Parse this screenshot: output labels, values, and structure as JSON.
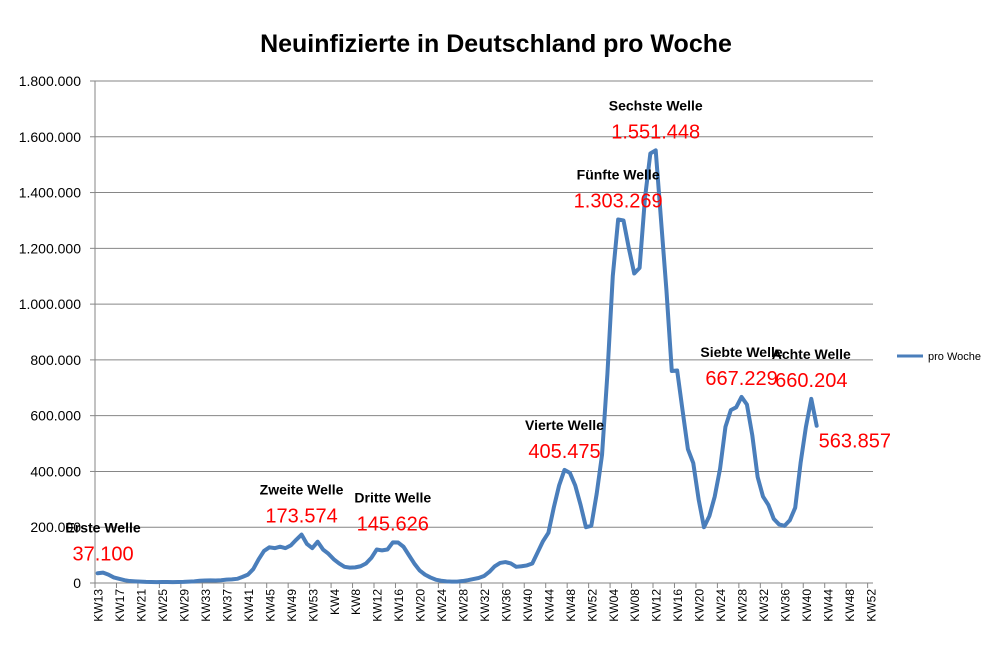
{
  "chart_data": {
    "type": "line",
    "title": "Neuinfizierte in Deutschland pro Woche",
    "categories": [
      "KW13",
      null,
      null,
      null,
      "KW17",
      null,
      null,
      null,
      "KW21",
      null,
      null,
      null,
      "KW25",
      null,
      null,
      null,
      "KW29",
      null,
      null,
      null,
      "KW33",
      null,
      null,
      null,
      "KW37",
      null,
      null,
      null,
      "KW41",
      null,
      null,
      null,
      "KW45",
      null,
      null,
      null,
      "KW49",
      null,
      null,
      null,
      "KW53",
      null,
      null,
      null,
      "KW4",
      null,
      null,
      null,
      "KW8",
      null,
      null,
      null,
      "KW12",
      null,
      null,
      null,
      "KW16",
      null,
      null,
      null,
      "KW20",
      null,
      null,
      null,
      "KW24",
      null,
      null,
      null,
      "KW28",
      null,
      null,
      null,
      "KW32",
      null,
      null,
      null,
      "KW36",
      null,
      null,
      null,
      "KW40",
      null,
      null,
      null,
      "KW44",
      null,
      null,
      null,
      "KW48",
      null,
      null,
      null,
      "KW52",
      null,
      null,
      null,
      "KW04",
      null,
      null,
      null,
      "KW08",
      null,
      null,
      null,
      "KW12",
      null,
      null,
      null,
      "KW16",
      null,
      null,
      null,
      "KW20",
      null,
      null,
      null,
      "KW24",
      null,
      null,
      null,
      "KW28",
      null,
      null,
      null,
      "KW32",
      null,
      null,
      null,
      "KW36",
      null,
      null,
      null,
      "KW40",
      null,
      null,
      null,
      "KW44",
      null,
      null,
      null,
      "KW48",
      null,
      null,
      null,
      "KW52"
    ],
    "series": [
      {
        "name": "pro Woche",
        "color": "#4a7ebb",
        "values": [
          35000,
          37100,
          30000,
          20000,
          15000,
          10000,
          7000,
          6000,
          5000,
          4000,
          3500,
          3000,
          3500,
          3500,
          3000,
          3500,
          4000,
          5000,
          6000,
          8000,
          9000,
          9500,
          9000,
          10000,
          12000,
          13000,
          15000,
          22000,
          30000,
          50000,
          85000,
          115000,
          128000,
          125000,
          130000,
          125000,
          135000,
          155000,
          173574,
          140000,
          125000,
          148000,
          120000,
          105000,
          85000,
          70000,
          58000,
          55000,
          56000,
          60000,
          70000,
          90000,
          120000,
          117000,
          120000,
          145626,
          145000,
          130000,
          100000,
          70000,
          45000,
          30000,
          20000,
          12000,
          8000,
          6000,
          5000,
          5000,
          7000,
          10000,
          14000,
          18000,
          25000,
          40000,
          60000,
          72000,
          75000,
          70000,
          58000,
          60000,
          63000,
          70000,
          110000,
          150000,
          180000,
          270000,
          350000,
          405475,
          395000,
          350000,
          280000,
          200000,
          205000,
          320000,
          460000,
          750000,
          1100000,
          1303269,
          1300000,
          1200000,
          1110000,
          1130000,
          1380000,
          1540000,
          1551448,
          1300000,
          1050000,
          760000,
          762000,
          620000,
          480000,
          430000,
          300000,
          200000,
          240000,
          310000,
          410000,
          560000,
          620000,
          630000,
          667229,
          640000,
          530000,
          380000,
          310000,
          280000,
          230000,
          210000,
          205000,
          225000,
          270000,
          430000,
          560000,
          660204,
          563857,
          null,
          null,
          null,
          null,
          null,
          null,
          null,
          null,
          null,
          null
        ]
      }
    ],
    "annotations": [
      {
        "text": "Erste Welle",
        "value": 37100,
        "label": "37.100"
      },
      {
        "text": "Zweite Welle",
        "value": 173574,
        "label": "173.574"
      },
      {
        "text": "Dritte Welle",
        "value": 145626,
        "label": "145.626"
      },
      {
        "text": "Vierte Welle",
        "value": 405475,
        "label": "405.475"
      },
      {
        "text": "Fünfte Welle",
        "value": 1303269,
        "label": "1.303.269"
      },
      {
        "text": "Sechste Welle",
        "value": 1551448,
        "label": "1.551.448"
      },
      {
        "text": "Siebte Welle",
        "value": 667229,
        "label": "667.229"
      },
      {
        "text": "Achte Welle",
        "value": 660204,
        "label": "660.204"
      },
      {
        "value": 563857,
        "label": "563.857"
      }
    ],
    "ylim": [
      0,
      1800000
    ],
    "yticks": [
      0,
      {
        "value": 200000,
        "label": "200.000"
      },
      {
        "value": 400000,
        "label": "400.000"
      },
      {
        "value": 600000,
        "label": "600.000"
      },
      {
        "value": 800000,
        "label": "800.000"
      },
      {
        "value": 1000000,
        "label": "1.000.000"
      },
      {
        "value": 1200000,
        "label": "1.200.000"
      },
      {
        "value": 1400000,
        "label": "1.400.000"
      },
      {
        "value": 1600000,
        "label": "1.600.000"
      },
      {
        "value": 1800000,
        "label": "1.800.000"
      }
    ],
    "grid": true,
    "legend": "right"
  }
}
